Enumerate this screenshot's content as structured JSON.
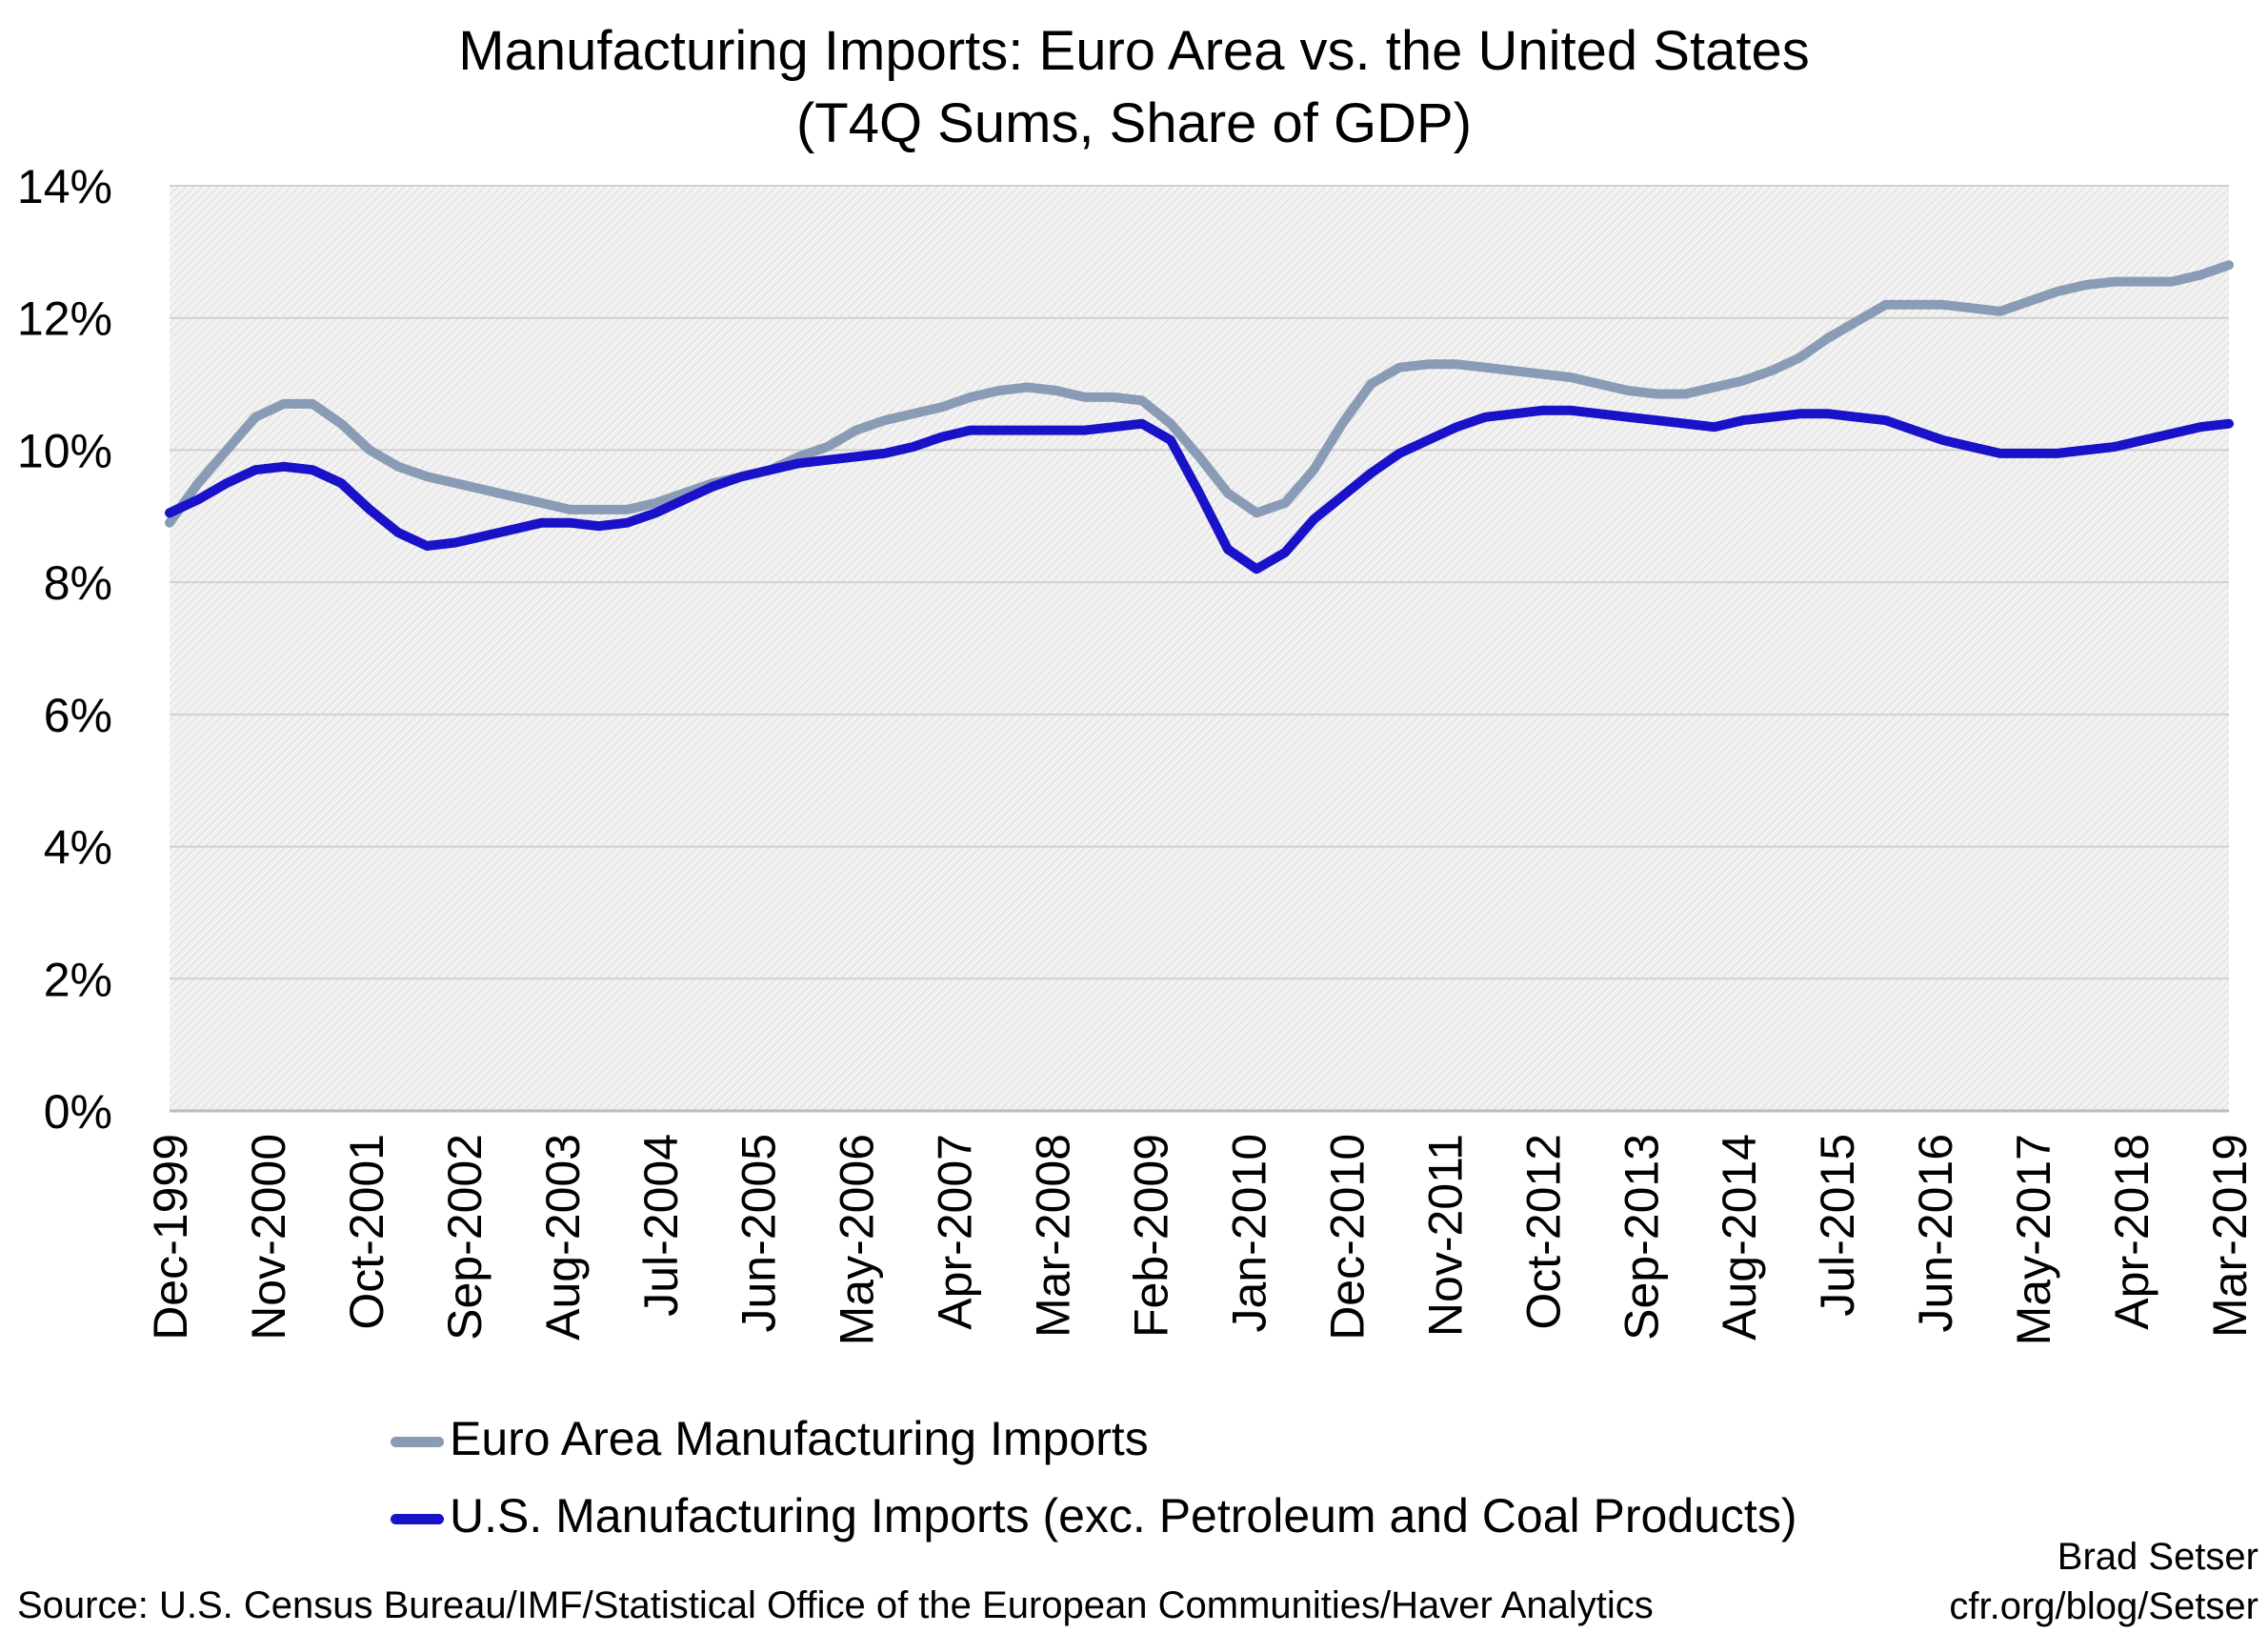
{
  "chart_data": {
    "type": "line",
    "title": "Manufacturing Imports: Euro Area vs. the United States",
    "subtitle": "(T4Q Sums, Share of GDP)",
    "xlabel": "",
    "ylabel": "",
    "ylim": [
      0,
      14
    ],
    "y_ticks": [
      "0%",
      "2%",
      "4%",
      "6%",
      "8%",
      "10%",
      "12%",
      "14%"
    ],
    "x_tick_labels": [
      "Dec-1999",
      "Nov-2000",
      "Oct-2001",
      "Sep-2002",
      "Aug-2003",
      "Jul-2004",
      "Jun-2005",
      "May-2006",
      "Apr-2007",
      "Mar-2008",
      "Feb-2009",
      "Jan-2010",
      "Dec-2010",
      "Nov-2011",
      "Oct-2012",
      "Sep-2013",
      "Aug-2014",
      "Jul-2015",
      "Jun-2016",
      "May-2017",
      "Apr-2018",
      "Mar-2019"
    ],
    "x_start": "Dec-1999",
    "x_end": "Mar-2019",
    "grid": true,
    "legend_position": "bottom",
    "series": [
      {
        "name": "Euro Area Manufacturing Imports",
        "color": "#8A9BB5",
        "values": [
          8.9,
          9.5,
          10.0,
          10.5,
          10.7,
          10.7,
          10.4,
          10.0,
          9.75,
          9.6,
          9.5,
          9.4,
          9.3,
          9.2,
          9.1,
          9.1,
          9.1,
          9.2,
          9.35,
          9.5,
          9.6,
          9.7,
          9.9,
          10.05,
          10.3,
          10.45,
          10.55,
          10.65,
          10.8,
          10.9,
          10.95,
          10.9,
          10.8,
          10.8,
          10.75,
          10.4,
          9.9,
          9.35,
          9.05,
          9.2,
          9.7,
          10.4,
          11.0,
          11.25,
          11.3,
          11.3,
          11.25,
          11.2,
          11.15,
          11.1,
          11.0,
          10.9,
          10.85,
          10.85,
          10.95,
          11.05,
          11.2,
          11.4,
          11.7,
          11.95,
          12.2,
          12.2,
          12.2,
          12.15,
          12.1,
          12.25,
          12.4,
          12.5,
          12.55,
          12.55,
          12.55,
          12.65,
          12.8
        ]
      },
      {
        "name": "U.S. Manufacturing Imports (exc. Petroleum and Coal Products)",
        "color": "#1A12C8",
        "values": [
          9.05,
          9.25,
          9.5,
          9.7,
          9.75,
          9.7,
          9.5,
          9.1,
          8.75,
          8.55,
          8.6,
          8.7,
          8.8,
          8.9,
          8.9,
          8.85,
          8.9,
          9.05,
          9.25,
          9.45,
          9.6,
          9.7,
          9.8,
          9.85,
          9.9,
          9.95,
          10.05,
          10.2,
          10.3,
          10.3,
          10.3,
          10.3,
          10.3,
          10.35,
          10.4,
          10.15,
          9.35,
          8.5,
          8.2,
          8.45,
          8.95,
          9.3,
          9.65,
          9.95,
          10.15,
          10.35,
          10.5,
          10.55,
          10.6,
          10.6,
          10.55,
          10.5,
          10.45,
          10.4,
          10.35,
          10.45,
          10.5,
          10.55,
          10.55,
          10.5,
          10.45,
          10.3,
          10.15,
          10.05,
          9.95,
          9.95,
          9.95,
          10.0,
          10.05,
          10.15,
          10.25,
          10.35,
          10.4
        ]
      }
    ]
  },
  "legend": {
    "items": [
      {
        "label": "Euro Area Manufacturing Imports",
        "color": "#8A9BB5"
      },
      {
        "label": "U.S. Manufacturing Imports (exc. Petroleum and Coal Products)",
        "color": "#1A12C8"
      }
    ]
  },
  "footer": {
    "source": "Source: U.S. Census Bureau/IMF/Statistical Office of the European Communities/Haver Analytics",
    "author": "Brad Setser",
    "site": "cfr.org/blog/Setser"
  }
}
